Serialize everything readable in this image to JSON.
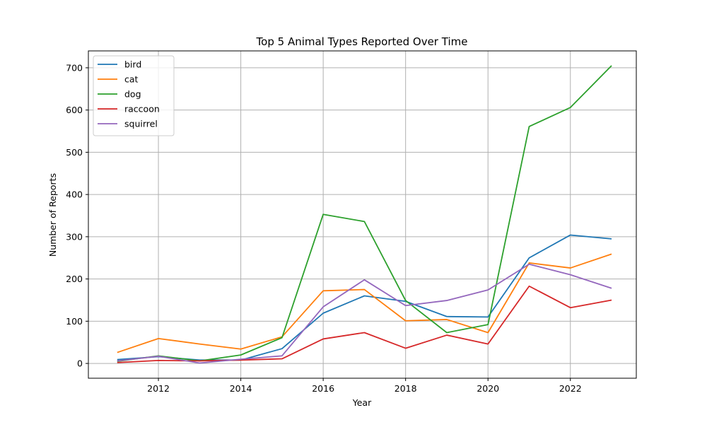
{
  "chart_data": {
    "type": "line",
    "title": "Top 5 Animal Types Reported Over Time",
    "xlabel": "Year",
    "ylabel": "Number of Reports",
    "x": [
      2011,
      2012,
      2013,
      2014,
      2015,
      2016,
      2017,
      2018,
      2019,
      2020,
      2021,
      2022,
      2023
    ],
    "xticks": [
      2012,
      2014,
      2016,
      2018,
      2020,
      2022
    ],
    "yticks": [
      0,
      100,
      200,
      300,
      400,
      500,
      600,
      700
    ],
    "xlim": [
      2010.3,
      2023.6
    ],
    "ylim": [
      -35,
      740
    ],
    "grid": true,
    "legend_position": "top-left",
    "series": [
      {
        "name": " bird",
        "color": "#1f77b4",
        "values": [
          9,
          16,
          8,
          8,
          35,
          119,
          160,
          147,
          111,
          110,
          250,
          304,
          295
        ]
      },
      {
        "name": " cat",
        "color": "#ff7f0e",
        "values": [
          26,
          59,
          46,
          34,
          63,
          172,
          175,
          101,
          104,
          73,
          238,
          226,
          259
        ]
      },
      {
        "name": " dog",
        "color": "#2ca02c",
        "values": [
          5,
          18,
          6,
          20,
          61,
          353,
          336,
          149,
          73,
          92,
          561,
          606,
          705
        ]
      },
      {
        "name": " raccoon",
        "color": "#d62728",
        "values": [
          2,
          7,
          6,
          8,
          11,
          58,
          73,
          36,
          67,
          46,
          183,
          132,
          150
        ]
      },
      {
        "name": " squirrel",
        "color": "#9467bd",
        "values": [
          6,
          17,
          1,
          10,
          18,
          134,
          198,
          137,
          149,
          174,
          235,
          210,
          178
        ]
      }
    ]
  }
}
